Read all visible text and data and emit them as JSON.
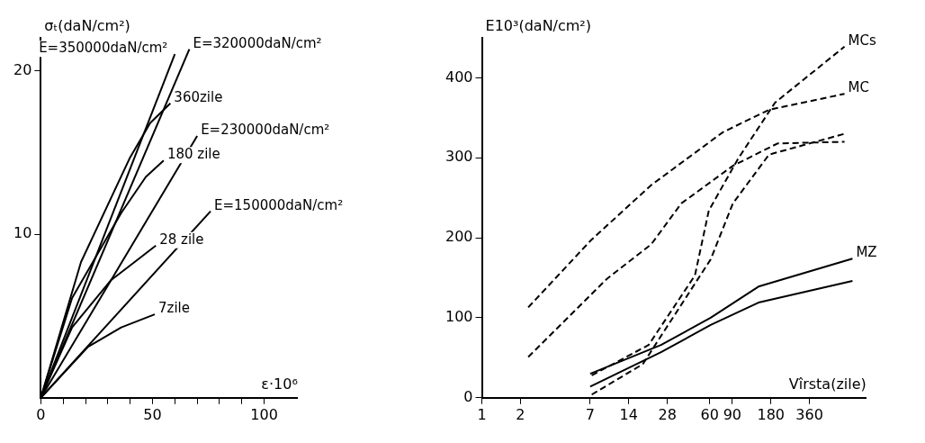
{
  "chart_data": [
    {
      "type": "line",
      "xlabel": "ε·10⁶",
      "ylabel": "σₜ(daN/cm²)",
      "xlim": [
        0,
        115
      ],
      "ylim": [
        0,
        22
      ],
      "xticks": [
        0,
        {
          "value": 10,
          "label": null
        },
        {
          "value": 20,
          "label": null
        },
        {
          "value": 30,
          "label": null
        },
        {
          "value": 40,
          "label": null
        },
        50,
        {
          "value": 60,
          "label": null
        },
        {
          "value": 70,
          "label": null
        },
        {
          "value": 80,
          "label": null
        },
        {
          "value": 90,
          "label": null
        },
        100
      ],
      "yticks": [
        10,
        20
      ],
      "grid": false,
      "legend": false,
      "marker": "none",
      "series": [
        {
          "name": "E=350000daN/cm²",
          "color": "#000000",
          "x": [
            0,
            60
          ],
          "values": [
            0,
            21
          ]
        },
        {
          "name": "E=320000daN/cm²",
          "color": "#000000",
          "x": [
            0,
            66.5
          ],
          "values": [
            0,
            21.3
          ]
        },
        {
          "name": "E=230000daN/cm²",
          "color": "#000000",
          "x": [
            0,
            70
          ],
          "values": [
            0,
            16
          ]
        },
        {
          "name": "E=150000daN/cm²",
          "color": "#000000",
          "x": [
            0,
            76
          ],
          "values": [
            0,
            11.4
          ]
        },
        {
          "name": "360zile",
          "color": "#000000",
          "x": [
            0,
            18,
            40,
            49,
            58
          ],
          "values": [
            0,
            8.3,
            14.7,
            16.8,
            18
          ]
        },
        {
          "name": "180 zile",
          "color": "#000000",
          "x": [
            0,
            14,
            36,
            47,
            55
          ],
          "values": [
            0,
            6.1,
            11.3,
            13.5,
            14.5
          ]
        },
        {
          "name": "28 zile",
          "color": "#000000",
          "x": [
            0,
            14,
            31.5,
            42,
            51.5
          ],
          "values": [
            0,
            4.3,
            7.2,
            8.3,
            9.3
          ]
        },
        {
          "name": "7zile",
          "color": "#000000",
          "x": [
            0,
            21,
            36,
            51
          ],
          "values": [
            0,
            3.1,
            4.3,
            5.1
          ]
        }
      ]
    },
    {
      "type": "line",
      "xlabel": "Vîrsta(zile)",
      "ylabel": "E10³(daN/cm²)",
      "log": "x",
      "xlim": [
        1,
        1000
      ],
      "ylim": [
        0,
        450
      ],
      "xticks": [
        1,
        2,
        7,
        14,
        28,
        60,
        90,
        180,
        360
      ],
      "yticks": [
        0,
        100,
        200,
        300,
        400
      ],
      "grid": false,
      "legend": false,
      "marker": "none",
      "series": [
        {
          "name": "MC",
          "color": "#000000",
          "line_style": "dashed",
          "x": [
            2.3,
            7.1,
            21,
            76,
            174,
            676
          ],
          "values": [
            113,
            197,
            266,
            332,
            360,
            380
          ]
        },
        {
          "color": "#000000",
          "line_style": "dashed",
          "x": [
            2.3,
            9.5,
            21,
            36,
            91,
            203,
            676
          ],
          "values": [
            51,
            149,
            192,
            243,
            290,
            318,
            320
          ]
        },
        {
          "name": "MCs",
          "color": "#000000",
          "line_style": "dashed",
          "x": [
            7.2,
            20,
            46,
            59,
            100,
            194,
            676
          ],
          "values": [
            28,
            66,
            153,
            234,
            299,
            369,
            439
          ]
        },
        {
          "color": "#000000",
          "line_style": "dashed",
          "x": [
            7.2,
            18,
            61,
            91,
            174,
            676
          ],
          "values": [
            4,
            42,
            173,
            243,
            304,
            330
          ]
        },
        {
          "name": "MZ",
          "color": "#000000",
          "x": [
            7,
            25,
            61,
            144,
            780
          ],
          "values": [
            30,
            66,
            100,
            139,
            174
          ]
        },
        {
          "color": "#000000",
          "x": [
            7,
            25,
            61,
            144,
            780
          ],
          "values": [
            14,
            57,
            91,
            119,
            146
          ]
        }
      ]
    }
  ]
}
